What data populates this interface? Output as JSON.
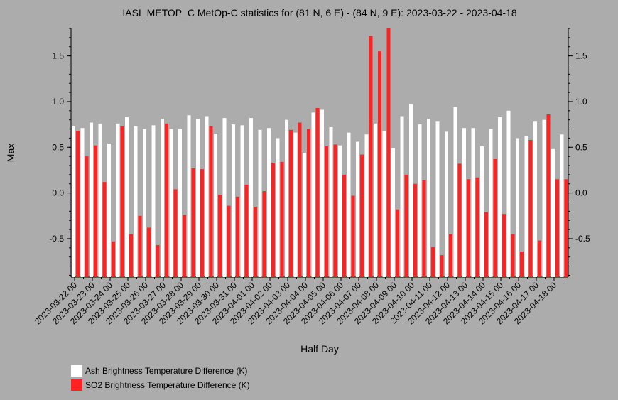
{
  "chart_data": {
    "type": "bar",
    "title": "IASI_METOP_C MetOp-C statistics for (81 N, 6 E) - (84 N, 9 E): 2023-03-22 - 2023-04-18",
    "xlabel": "Half Day",
    "ylabel": "Max",
    "ylim": [
      -0.92,
      1.8
    ],
    "yticks": [
      -0.5,
      0.0,
      0.5,
      1.0,
      1.5
    ],
    "ytick_labels": [
      "-0.5",
      "0.0",
      "0.5",
      "1.0",
      "1.5"
    ],
    "date_labels": [
      "2023-03-22 00",
      "2023-03-23 00",
      "2023-03-24 00",
      "2023-03-25 00",
      "2023-03-26 00",
      "2023-03-27 00",
      "2023-03-28 00",
      "2023-03-29 00",
      "2023-03-30 00",
      "2023-03-31 00",
      "2023-04-01 00",
      "2023-04-02 00",
      "2023-04-03 00",
      "2023-04-04 00",
      "2023-04-05 00",
      "2023-04-06 00",
      "2023-04-07 00",
      "2023-04-08 00",
      "2023-04-09 00",
      "2023-04-10 00",
      "2023-04-11 00",
      "2023-04-12 00",
      "2023-04-13 00",
      "2023-04-14 00",
      "2023-04-15 00",
      "2023-04-16 00",
      "2023-04-17 00",
      "2023-04-18 00"
    ],
    "series": [
      {
        "name": "Ash Brightness Temperature Difference (K)",
        "color": "#ffffff",
        "values": [
          0.73,
          0.71,
          0.77,
          0.76,
          0.54,
          0.76,
          0.83,
          0.73,
          0.7,
          0.74,
          0.81,
          0.7,
          0.7,
          0.85,
          0.81,
          0.84,
          0.65,
          0.82,
          0.75,
          0.74,
          0.82,
          0.69,
          0.71,
          0.6,
          0.8,
          0.66,
          0.44,
          0.88,
          0.91,
          0.72,
          0.52,
          0.66,
          0.56,
          0.64,
          0.76,
          0.68,
          0.49,
          0.84,
          0.97,
          0.75,
          0.81,
          0.78,
          0.67,
          0.94,
          0.71,
          0.71,
          0.51,
          0.7,
          0.83,
          0.9,
          0.6,
          0.62,
          0.78,
          0.8,
          0.48,
          0.64
        ]
      },
      {
        "name": "SO2 Brightness Temperature Difference (K)",
        "color": "#ff2222",
        "values": [
          0.68,
          0.4,
          0.52,
          0.12,
          -0.53,
          0.73,
          -0.45,
          -0.25,
          -0.38,
          -0.57,
          0.76,
          0.04,
          -0.24,
          0.27,
          0.26,
          0.73,
          -0.02,
          -0.14,
          -0.04,
          0.09,
          -0.15,
          0.02,
          0.33,
          0.34,
          0.69,
          0.77,
          0.7,
          0.93,
          0.51,
          0.53,
          0.2,
          -0.03,
          0.42,
          1.72,
          1.55,
          1.8,
          -0.18,
          0.2,
          0.1,
          0.14,
          -0.59,
          -0.68,
          -0.45,
          0.32,
          0.15,
          0.17,
          -0.21,
          0.37,
          -0.23,
          -0.45,
          -0.64,
          0.58,
          -0.52,
          0.86,
          0.15,
          0.15
        ]
      }
    ],
    "legend_position": "bottom-left"
  }
}
